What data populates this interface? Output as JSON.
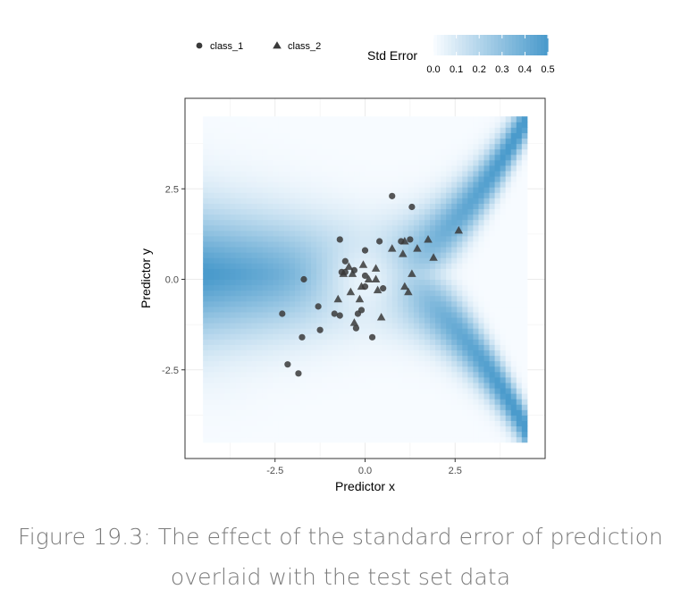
{
  "chart_data": {
    "type": "scatter",
    "title": "",
    "xlabel": "Predictor x",
    "ylabel": "Predictor y",
    "xlim": [
      -5.0,
      5.0
    ],
    "ylim": [
      -4.95,
      5.0
    ],
    "raster_extent": {
      "x": [
        -4.5,
        4.5
      ],
      "y": [
        -4.5,
        4.5
      ]
    },
    "xticks": [
      -2.5,
      0.0,
      2.5
    ],
    "xtick_labels": [
      "-2.5",
      "0.0",
      "2.5"
    ],
    "yticks": [
      -2.5,
      0.0,
      2.5
    ],
    "ytick_labels": [
      "-2.5",
      "0.0",
      "2.5"
    ],
    "grid": true,
    "legend": {
      "position": "top",
      "shape_entries": [
        {
          "name": "class_1",
          "shape": "circle"
        },
        {
          "name": "class_2",
          "shape": "triangle"
        }
      ],
      "fill_title": "Std Error",
      "fill_ticks": [
        "0.0",
        "0.1",
        "0.2",
        "0.3",
        "0.4",
        "0.5"
      ],
      "fill_range": [
        0.0,
        0.5
      ]
    },
    "colors": {
      "low": "#f7fbff",
      "high": "#4b9bcc",
      "points": "#3a3a3a"
    },
    "series": [
      {
        "name": "class_1",
        "shape": "circle",
        "points": [
          [
            0.75,
            2.3
          ],
          [
            1.3,
            2.0
          ],
          [
            -0.7,
            1.1
          ],
          [
            0.4,
            1.05
          ],
          [
            1.0,
            1.05
          ],
          [
            1.25,
            1.1
          ],
          [
            0.0,
            0.8
          ],
          [
            -0.55,
            0.5
          ],
          [
            -0.65,
            0.2
          ],
          [
            -0.55,
            0.2
          ],
          [
            -0.3,
            0.25
          ],
          [
            -1.7,
            0.0
          ],
          [
            0.0,
            0.1
          ],
          [
            0.5,
            -0.25
          ],
          [
            0.0,
            -0.2
          ],
          [
            -1.3,
            -0.75
          ],
          [
            -0.85,
            -0.95
          ],
          [
            -0.7,
            -1.0
          ],
          [
            -0.2,
            -0.95
          ],
          [
            -0.1,
            -0.85
          ],
          [
            -0.25,
            -1.35
          ],
          [
            -1.25,
            -1.4
          ],
          [
            0.2,
            -1.6
          ],
          [
            -1.75,
            -1.6
          ],
          [
            -2.3,
            -0.95
          ],
          [
            -2.15,
            -2.35
          ],
          [
            -1.85,
            -2.6
          ]
        ]
      },
      {
        "name": "class_2",
        "shape": "triangle",
        "points": [
          [
            2.6,
            1.35
          ],
          [
            1.75,
            1.1
          ],
          [
            1.45,
            0.85
          ],
          [
            1.1,
            1.05
          ],
          [
            1.05,
            0.7
          ],
          [
            1.9,
            0.6
          ],
          [
            0.75,
            0.85
          ],
          [
            1.3,
            0.15
          ],
          [
            0.3,
            0.3
          ],
          [
            -0.05,
            0.4
          ],
          [
            -0.45,
            0.35
          ],
          [
            -0.6,
            0.15
          ],
          [
            -0.35,
            0.15
          ],
          [
            0.3,
            0.0
          ],
          [
            0.1,
            0.0
          ],
          [
            -0.1,
            -0.2
          ],
          [
            -0.4,
            -0.35
          ],
          [
            0.35,
            -0.3
          ],
          [
            1.1,
            -0.2
          ],
          [
            1.2,
            -0.35
          ],
          [
            -0.75,
            -0.55
          ],
          [
            -0.15,
            -0.55
          ],
          [
            0.45,
            -1.05
          ],
          [
            -0.3,
            -1.2
          ]
        ]
      }
    ]
  },
  "caption": {
    "line1": "Figure 19.3: The effect of the standard error of prediction",
    "line2": "overlaid with the test set data"
  }
}
